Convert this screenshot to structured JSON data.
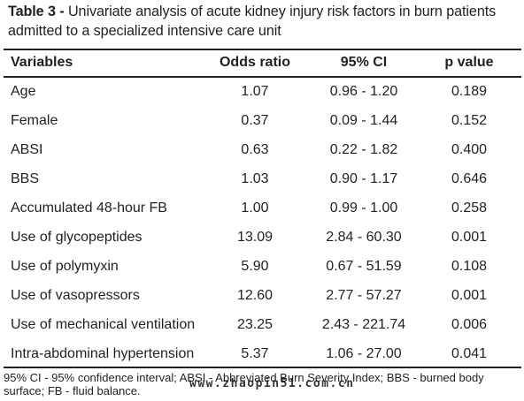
{
  "title": {
    "lead": "Table 3 - ",
    "text": "Univariate analysis of acute kidney injury risk factors in burn patients admitted to a specialized intensive care unit"
  },
  "columns": [
    "Variables",
    "Odds ratio",
    "95% CI",
    "p value"
  ],
  "rows": [
    {
      "variable": "Age",
      "odds_ratio": "1.07",
      "ci": "0.96 - 1.20",
      "p": "0.189"
    },
    {
      "variable": "Female",
      "odds_ratio": "0.37",
      "ci": "0.09 - 1.44",
      "p": "0.152"
    },
    {
      "variable": "ABSI",
      "odds_ratio": "0.63",
      "ci": "0.22 - 1.82",
      "p": "0.400"
    },
    {
      "variable": "BBS",
      "odds_ratio": "1.03",
      "ci": "0.90 - 1.17",
      "p": "0.646"
    },
    {
      "variable": "Accumulated 48-hour FB",
      "odds_ratio": "1.00",
      "ci": "0.99 - 1.00",
      "p": "0.258"
    },
    {
      "variable": "Use of glycopeptides",
      "odds_ratio": "13.09",
      "ci": "2.84 - 60.30",
      "p": "0.001"
    },
    {
      "variable": "Use of polymyxin",
      "odds_ratio": "5.90",
      "ci": "0.67 - 51.59",
      "p": "0.108"
    },
    {
      "variable": "Use of vasopressors",
      "odds_ratio": "12.60",
      "ci": "2.77 - 57.27",
      "p": "0.001"
    },
    {
      "variable": "Use of mechanical ventilation",
      "odds_ratio": "23.25",
      "ci": "2.43 - 221.74",
      "p": "0.006"
    },
    {
      "variable": "Intra-abdominal hypertension",
      "odds_ratio": "5.37",
      "ci": "1.06 - 27.00",
      "p": "0.041"
    }
  ],
  "footnote": "95% CI - 95% confidence interval; ABSI - Abbreviated Burn Severity Index; BBS - burned body surface; FB - fluid balance.",
  "watermark": "www.zhaopin51.com.cn"
}
